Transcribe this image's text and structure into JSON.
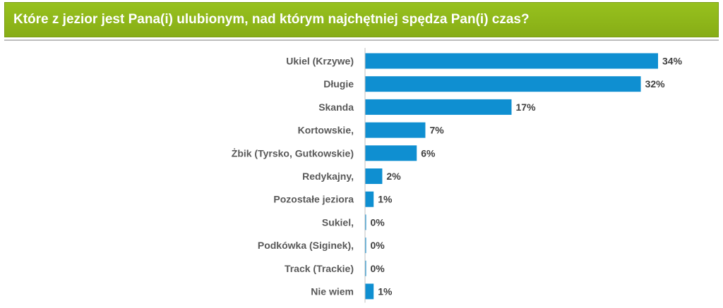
{
  "header": {
    "title": "Które z jezior jest Pana(i) ulubionym, nad którym najchętniej spędza Pan(i) czas?",
    "background_color": "#8db91b"
  },
  "chart_data": {
    "type": "bar",
    "orientation": "horizontal",
    "bar_color": "#0f8fd1",
    "categories": [
      "Ukiel (Krzywe)",
      "Długie",
      "Skanda",
      "Kortowskie,",
      "Żbik (Tyrsko, Gutkowskie)",
      "Redykajny,",
      "Pozostałe jeziora",
      "Sukiel,",
      "Podkówka (Siginek),",
      "Track (Trackie)",
      "Nie wiem"
    ],
    "values": [
      34,
      32,
      17,
      7,
      6,
      2,
      1,
      0,
      0,
      0,
      1
    ],
    "value_labels": [
      "34%",
      "32%",
      "17%",
      "7%",
      "6%",
      "2%",
      "1%",
      "0%",
      "0%",
      "0%",
      "1%"
    ],
    "xlim": [
      0,
      34
    ]
  }
}
